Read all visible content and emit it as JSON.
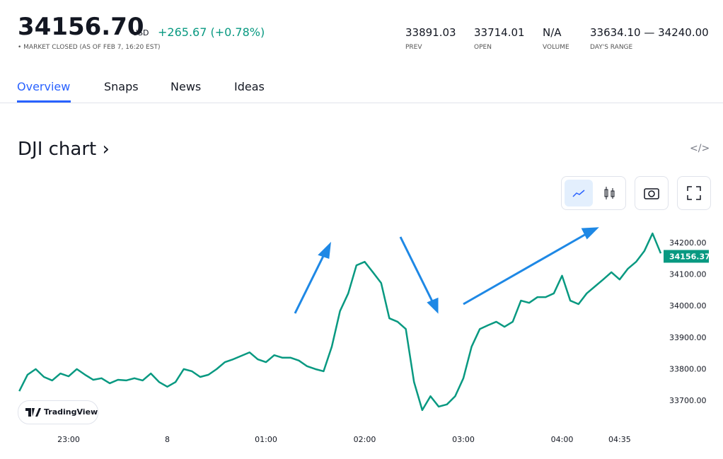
{
  "header": {
    "price": "34156.70",
    "currency": "USD",
    "change": "+265.67",
    "change_pct": "(+0.78%)",
    "status": "• MARKET CLOSED (AS OF FEB 7, 16:20 EST)",
    "stats": [
      {
        "value": "33891.03",
        "label": "PREV"
      },
      {
        "value": "33714.01",
        "label": "OPEN"
      },
      {
        "value": "N/A",
        "label": "VOLUME"
      },
      {
        "value": "33634.10 — 34240.00",
        "label": "DAY'S RANGE"
      }
    ]
  },
  "tabs": [
    "Overview",
    "Snaps",
    "News",
    "Ideas"
  ],
  "section_title": "DJI chart ›",
  "logo": "TradingView",
  "chart_data": {
    "type": "line",
    "categories": [
      null,
      null,
      null,
      null,
      null,
      null,
      "23:00",
      null,
      null,
      null,
      null,
      null,
      null,
      null,
      null,
      null,
      null,
      null,
      "8",
      null,
      null,
      null,
      null,
      null,
      null,
      null,
      null,
      null,
      null,
      null,
      "01:00",
      null,
      null,
      null,
      null,
      null,
      null,
      null,
      null,
      null,
      null,
      null,
      "02:00",
      null,
      null,
      null,
      null,
      null,
      null,
      null,
      null,
      null,
      null,
      null,
      "03:00",
      null,
      null,
      null,
      null,
      null,
      null,
      null,
      null,
      null,
      null,
      null,
      "04:00",
      null,
      null,
      null,
      null,
      null,
      null,
      "04:35",
      null,
      null,
      null,
      null,
      null
    ],
    "series": [
      {
        "color": "#089981",
        "values": [
          33729,
          33781,
          33799,
          33774,
          33763,
          33785,
          33776,
          33799,
          33781,
          33765,
          33770,
          33754,
          33765,
          33763,
          33770,
          33763,
          33785,
          33758,
          33743,
          33758,
          33799,
          33792,
          33774,
          33781,
          33799,
          33821,
          33830,
          33841,
          33852,
          33830,
          33821,
          33843,
          33835,
          33835,
          33826,
          33808,
          33799,
          33792,
          33870,
          33983,
          34039,
          34128,
          34139,
          34106,
          34072,
          33960,
          33949,
          33926,
          33758,
          33669,
          33713,
          33680,
          33687,
          33713,
          33770,
          33870,
          33926,
          33938,
          33949,
          33933,
          33949,
          34016,
          34009,
          34027,
          34027,
          34039,
          34095,
          34016,
          34005,
          34039,
          34061,
          34083,
          34106,
          34083,
          34117,
          34139,
          34173,
          34229,
          34166
        ]
      }
    ],
    "last_value": 34156.37,
    "ylim": [
      33620,
      34250
    ],
    "yticks": [
      {
        "value": 33700,
        "label": "33700.00"
      },
      {
        "value": 33800,
        "label": "33800.00"
      },
      {
        "value": 33900,
        "label": "33900.00"
      },
      {
        "value": 34000,
        "label": "34000.00"
      },
      {
        "value": 34100,
        "label": "34100.00"
      },
      {
        "value": 34200,
        "label": "34200.00"
      }
    ],
    "grid": false
  }
}
